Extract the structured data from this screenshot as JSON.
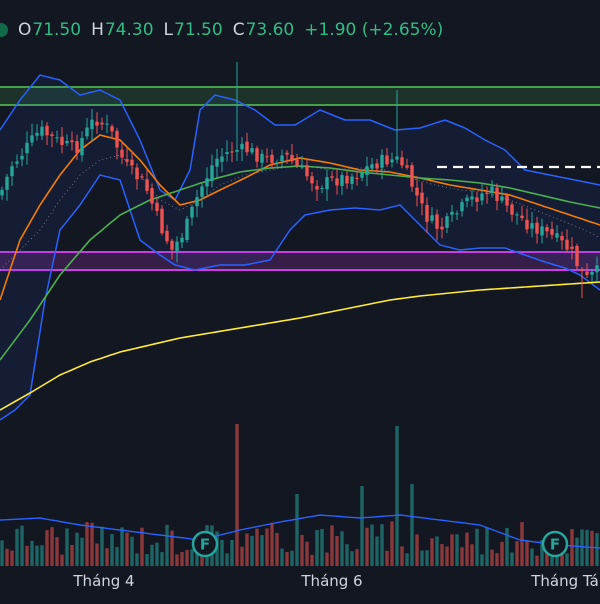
{
  "legend": {
    "open_label": "O",
    "open": "71.50",
    "high_label": "H",
    "high": "74.30",
    "low_label": "L",
    "low": "71.50",
    "close_label": "C",
    "close": "73.60",
    "change": "+1.90 (+2.65%)"
  },
  "x_axis_labels": [
    "Tháng 4",
    "Tháng 6",
    "Tháng Tá"
  ],
  "event_marker_label": "F",
  "colors": {
    "background": "#131722",
    "up": "#26a69a",
    "down": "#ef5350",
    "bollinger": "#2962ff",
    "ma_orange": "#f57c00",
    "ma_green": "#4caf50",
    "ma_yellow": "#ffeb3b",
    "zone_green": "#4caf50",
    "zone_magenta": "#e040fb",
    "legend_value": "#2ebd85"
  },
  "chart_data": {
    "type": "candlestick",
    "indicators": [
      "Bollinger Bands",
      "Moving Average (orange)",
      "Moving Average (green)",
      "Moving Average (yellow)",
      "Volume",
      "Volume MA"
    ],
    "horizontal_zones": [
      {
        "color": "green",
        "role": "resistance zone (top)"
      },
      {
        "color": "magenta",
        "role": "support zone (middle)"
      }
    ],
    "dashed_level": {
      "color": "white",
      "style": "dashed"
    },
    "event_markers": [
      {
        "label": "F",
        "near": "Tháng 4 → Tháng 6"
      },
      {
        "label": "F",
        "near": "Tháng Tá"
      }
    ],
    "last_bar": {
      "open": 71.5,
      "high": 74.3,
      "low": 71.5,
      "close": 73.6,
      "change": 1.9,
      "change_pct": 2.65
    },
    "grid": false
  }
}
